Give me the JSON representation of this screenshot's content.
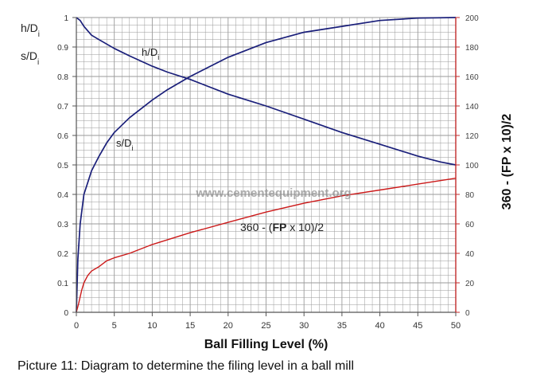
{
  "caption": "Picture 11: Diagram to determine the filing level in a ball mill",
  "watermark": "www.cementequipment.org",
  "colors": {
    "blue_curve": "#1a1f7a",
    "red_curve": "#cc1a1a",
    "grid": "#9a9a9a",
    "right_axis": "#c22a2a"
  },
  "chart_data": {
    "type": "line",
    "xlabel": "Ball Filling Level (%)",
    "xlim": [
      0,
      50
    ],
    "x_ticks": [
      0,
      5,
      10,
      15,
      20,
      25,
      30,
      35,
      40,
      45,
      50
    ],
    "y_left": {
      "labels": [
        "h/D",
        "s/D"
      ],
      "label_subscript": "i",
      "lim": [
        0,
        1
      ],
      "ticks": [
        0,
        0.1,
        0.2,
        0.3,
        0.4,
        0.5,
        0.6,
        0.7,
        0.8,
        0.9,
        1
      ],
      "tick_labels": [
        "0",
        "0.1",
        "0.2",
        "0.3",
        "0.4",
        "0.5",
        "0.6",
        "0.7",
        "0.8",
        "0.9",
        "1"
      ]
    },
    "y_right": {
      "label_parts": [
        "360 - (",
        "FP",
        " x 10)/2"
      ],
      "lim": [
        0,
        200
      ],
      "ticks": [
        0,
        20,
        40,
        60,
        80,
        100,
        120,
        140,
        160,
        180,
        200
      ],
      "tick_labels": [
        "0",
        "20",
        "40",
        "60",
        "80",
        "100",
        "120",
        "140",
        "160",
        "180",
        "200"
      ]
    },
    "series": [
      {
        "name": "h/D",
        "name_subscript": "i",
        "axis": "left",
        "x": [
          0,
          0.5,
          1,
          2,
          3,
          5,
          7,
          10,
          12,
          15,
          20,
          25,
          30,
          35,
          40,
          45,
          48,
          50
        ],
        "y": [
          1.0,
          0.99,
          0.97,
          0.94,
          0.925,
          0.895,
          0.87,
          0.835,
          0.815,
          0.79,
          0.74,
          0.7,
          0.655,
          0.61,
          0.57,
          0.53,
          0.51,
          0.5
        ]
      },
      {
        "name": "s/D",
        "name_subscript": "i",
        "axis": "left",
        "x": [
          0,
          0.2,
          0.5,
          1,
          1.5,
          2,
          3,
          4,
          5,
          7,
          10,
          12,
          15,
          20,
          25,
          30,
          35,
          40,
          45,
          50
        ],
        "y": [
          0,
          0.18,
          0.3,
          0.4,
          0.44,
          0.48,
          0.53,
          0.575,
          0.61,
          0.66,
          0.72,
          0.755,
          0.8,
          0.865,
          0.915,
          0.95,
          0.97,
          0.99,
          0.998,
          1.0
        ]
      },
      {
        "name_parts": [
          "360 - (",
          "FP",
          " x 10)/2"
        ],
        "axis": "right",
        "x": [
          0,
          0.3,
          0.7,
          1,
          1.5,
          2,
          3,
          4,
          5,
          7,
          10,
          15,
          20,
          25,
          30,
          35,
          40,
          45,
          50
        ],
        "y": [
          0,
          6,
          15,
          20,
          25,
          28,
          31,
          35,
          37,
          40,
          46,
          54,
          61,
          68,
          74,
          79,
          83,
          87,
          91
        ]
      }
    ]
  }
}
